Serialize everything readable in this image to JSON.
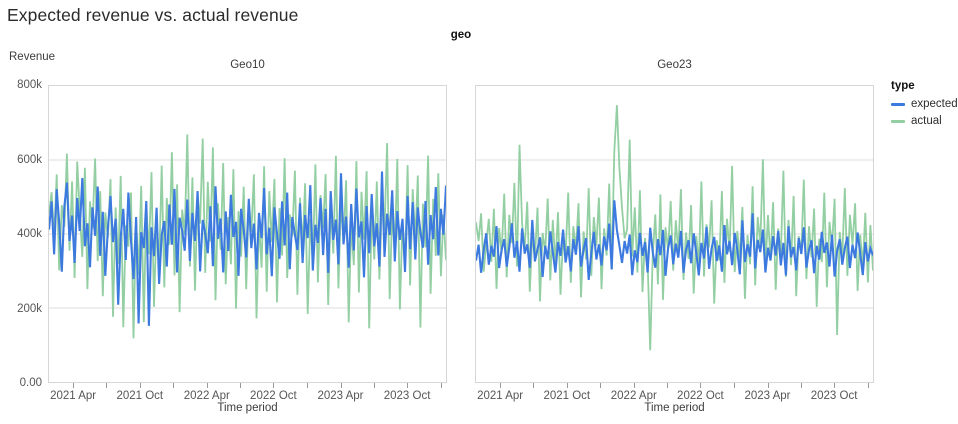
{
  "chart_data": {
    "type": "line",
    "title": "Expected revenue vs. actual revenue",
    "facet_field": "geo",
    "x": {
      "label": "Time period",
      "frequency": "weekly",
      "points_per_series": 156,
      "tick_labels": [
        "2021 Apr",
        "2021 Oct",
        "2022 Apr",
        "2022 Oct",
        "2023 Apr",
        "2023 Oct"
      ],
      "major_tick_positions": [
        0.063,
        0.23,
        0.398,
        0.565,
        0.733,
        0.9
      ],
      "minor_tick_positions": [
        0.146,
        0.314,
        0.481,
        0.649,
        0.816,
        0.984
      ]
    },
    "y": {
      "label": "Revenue",
      "unit": "thousands",
      "ylim": [
        0,
        800
      ],
      "tick_labels_top_to_bottom": [
        "800k",
        "600k",
        "400k",
        "200k",
        "0.00"
      ],
      "gridline_values": [
        200,
        400,
        600
      ],
      "grid_on": true
    },
    "legend": {
      "title": "type",
      "position": "right",
      "entries": [
        {
          "label": "expected",
          "color": "#3d7adf"
        },
        {
          "label": "actual",
          "color": "#93cfa2"
        }
      ]
    },
    "style": {
      "grid_color": "#dedede",
      "border_color": "#d6d6d6",
      "expected_color": "#3d7adf",
      "actual_color": "#93cfa2"
    },
    "facets": [
      {
        "name": "Geo10",
        "series": [
          {
            "name": "expected",
            "color": "#3d7adf",
            "values": [
              412,
              488,
              345,
              521,
              430,
              298,
              476,
              539,
              381,
              450,
              322,
              497,
              408,
              551,
              367,
              429,
              310,
              472,
              395,
              528,
              341,
              460,
              287,
              415,
              503,
              378,
              441,
              209,
              392,
              468,
              330,
              512,
              384,
              278,
              446,
              158,
              405,
              362,
              489,
              152,
              418,
              340,
              471,
              265,
              398,
              435,
              312,
              480,
              371,
              522,
              296,
              444,
              409,
              355,
              493,
              327,
              457,
              381,
              516,
              299,
              438,
              402,
              348,
              475,
              313,
              529,
              387,
              442,
              296,
              461,
              354,
              506,
              392,
              433,
              287,
              468,
              411,
              337,
              495,
              362,
              428,
              304,
              457,
              389,
              524,
              345,
              417,
              286,
              472,
              401,
              333,
              488,
              369,
              512,
              305,
              446,
              398,
              357,
              483,
              322,
              451,
              389,
              532,
              301,
              425,
              376,
              497,
              343,
              468,
              295,
              516,
              384,
              439,
              318,
              564,
              372,
              447,
              309,
              481,
              356,
              523,
              391,
              434,
              283,
              476,
              348,
              508,
              367,
              429,
              312,
              569,
              338,
              455,
              397,
              518,
              326,
              462,
              384,
              441,
              297,
              503,
              359,
              486,
              331,
              472,
              405,
              363,
              489,
              317,
              451,
              386,
              527,
              342,
              468,
              398,
              531
            ]
          },
          {
            "name": "actual",
            "color": "#93cfa2",
            "values": [
              455,
              513,
              389,
              561,
              302,
              478,
              420,
              617,
              355,
              542,
              281,
              596,
              463,
              338,
              579,
              251,
              488,
              415,
              604,
              327,
              516,
              232,
              458,
              390,
              548,
              176,
              472,
              319,
              557,
              148,
              423,
              366,
              512,
              118,
              445,
              289,
              530,
              162,
              479,
              345,
              567,
              203,
              438,
              310,
              585,
              256,
              497,
              371,
              621,
              288,
              534,
              189,
              466,
              398,
              669,
              312,
              553,
              247,
              509,
              428,
              658,
              295,
              541,
              380,
              634,
              221,
              483,
              357,
              592,
              264,
              446,
              318,
              575,
              198,
              462,
              339,
              528,
              251,
              487,
              406,
              561,
              172,
              435,
              309,
              583,
              244,
              516,
              378,
              549,
              215,
              470,
              342,
              605,
              281,
              453,
              393,
              571,
              236,
              498,
              360,
              537,
              184,
              441,
              322,
              588,
              269,
              505,
              415,
              562,
              208,
              476,
              347,
              611,
              253,
              489,
              374,
              545,
              161,
              428,
              316,
              597,
              242,
              514,
              385,
              570,
              145,
              459,
              331,
              542,
              277,
              493,
              408,
              646,
              224,
              467,
              352,
              603,
              196,
              438,
              319,
              586,
              261,
              521,
              383,
              558,
              147,
              482,
              364,
              612,
              238,
              495,
              341,
              564,
              286,
              452,
              329
            ]
          }
        ]
      },
      {
        "name": "Geo23",
        "series": [
          {
            "name": "expected",
            "color": "#3d7adf",
            "values": [
              328,
              371,
              295,
              356,
              402,
              317,
              368,
              339,
              421,
              308,
              357,
              386,
              312,
              364,
              429,
              336,
              381,
              298,
              415,
              347,
              372,
              309,
              438,
              326,
              359,
              391,
              284,
              368,
              332,
              407,
              351,
              296,
              378,
              341,
              412,
              323,
              367,
              299,
              386,
              344,
              421,
              312,
              358,
              389,
              276,
              348,
              406,
              331,
              372,
              315,
              393,
              356,
              428,
              304,
              491,
              411,
              369,
              322,
              381,
              347,
              398,
              289,
              356,
              324,
              403,
              341,
              378,
              296,
              417,
              352,
              309,
              386,
              343,
              411,
              287,
              362,
              396,
              318,
              374,
              336,
              408,
              295,
              357,
              383,
              321,
              402,
              348,
              288,
              376,
              334,
              419,
              306,
              361,
              392,
              327,
              369,
              298,
              424,
              345,
              381,
              316,
              403,
              358,
              291,
              437,
              324,
              372,
              339,
              456,
              307,
              384,
              351,
              412,
              296,
              363,
              329,
              394,
              342,
              408,
              315,
              376,
              288,
              421,
              337,
              365,
              302,
              389,
              346,
              418,
              309,
              357,
              383,
              294,
              368,
              331,
              406,
              349,
              377,
              312,
              398,
              285,
              354,
              386,
              317,
              362,
              393,
              308,
              371,
              335,
              404,
              347,
              289,
              378,
              326,
              361,
              342
            ]
          },
          {
            "name": "actual",
            "color": "#93cfa2",
            "values": [
              432,
              381,
              456,
              298,
              374,
              441,
              325,
              468,
              252,
              416,
              347,
              509,
              283,
              452,
              376,
              538,
              312,
              641,
              428,
              361,
              487,
              244,
              395,
              336,
              471,
              218,
              403,
              352,
              496,
              275,
              438,
              317,
              459,
              236,
              392,
              344,
              512,
              268,
              421,
              358,
              483,
              229,
              407,
              331,
              524,
              287,
              446,
              369,
              498,
              251,
              415,
              342,
              536,
              304,
              623,
              748,
              579,
              471,
              388,
              412,
              655,
              339,
              472,
              296,
              518,
              243,
              389,
              327,
              86,
              341,
              453,
              264,
              507,
              222,
              418,
              356,
              489,
              301,
              437,
              348,
              521,
              276,
              404,
              333,
              478,
              239,
              395,
              317,
              542,
              285,
              426,
              364,
              491,
              212,
              383,
              329,
              516,
              268,
              441,
              352,
              584,
              297,
              408,
              336,
              473,
              225,
              397,
              318,
              529,
              261,
              446,
              374,
              602,
              308,
              451,
              327,
              486,
              249,
              415,
              343,
              571,
              284,
              438,
              316,
              503,
              232,
              394,
              351,
              547,
              278,
              421,
              337,
              469,
              203,
              387,
              324,
              512,
              256,
              433,
              368,
              495,
              127,
              406,
              339,
              524,
              287,
              452,
              371,
              483,
              246,
              398,
              312,
              457,
              269,
              424,
              301
            ]
          }
        ]
      }
    ]
  }
}
